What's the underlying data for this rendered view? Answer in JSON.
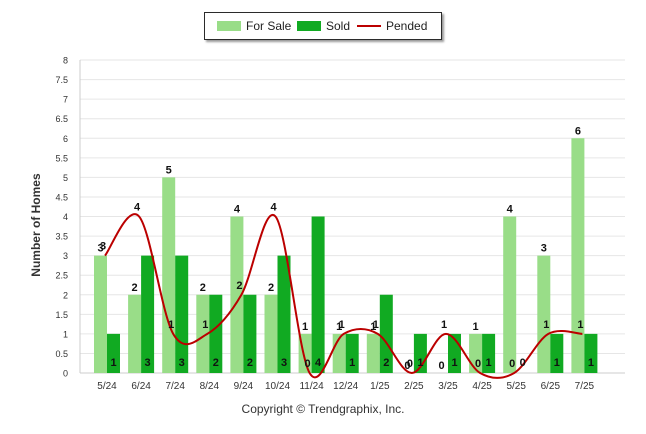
{
  "chart_data": {
    "type": "bar",
    "categories": [
      "5/24",
      "6/24",
      "7/24",
      "8/24",
      "9/24",
      "10/24",
      "11/24",
      "12/24",
      "1/25",
      "2/25",
      "3/25",
      "4/25",
      "5/25",
      "6/25",
      "7/25"
    ],
    "series": [
      {
        "name": "For Sale",
        "kind": "bar",
        "color": "#99dd88",
        "values": [
          3,
          2,
          5,
          2,
          4,
          2,
          1,
          1,
          1,
          0,
          0,
          1,
          4,
          3,
          6
        ]
      },
      {
        "name": "Sold",
        "kind": "bar",
        "color": "#11aa22",
        "values": [
          1,
          3,
          3,
          2,
          2,
          3,
          4,
          1,
          2,
          1,
          1,
          1,
          0,
          1,
          1
        ]
      },
      {
        "name": "Pended",
        "kind": "line",
        "color": "#bb0000",
        "values": [
          3,
          4,
          1,
          1,
          2,
          4,
          0,
          1,
          1,
          0,
          1,
          0,
          0,
          1,
          1
        ]
      }
    ],
    "yticks": [
      "0",
      "0.5",
      "1",
      "1.5",
      "2",
      "2.5",
      "3",
      "3.5",
      "4",
      "4.5",
      "5",
      "5.5",
      "6",
      "6.5",
      "7",
      "7.5",
      "8"
    ],
    "ylim": [
      0,
      8
    ],
    "ylabel": "Number of Homes",
    "xlabel": "",
    "legend_position": "top-center",
    "grid": true
  },
  "footer": "Copyright © Trendgraphix, Inc."
}
